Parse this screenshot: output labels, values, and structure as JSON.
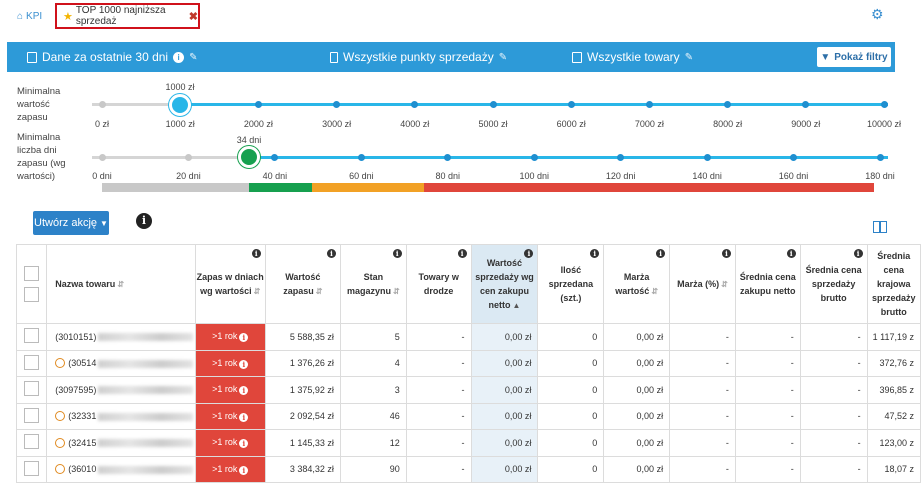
{
  "topbar": {
    "breadcrumb": "KPI",
    "active_tab": "TOP 1000 najniższa sprzedaż"
  },
  "filterbar": {
    "period": "Dane za ostatnie 30 dni",
    "points": "Wszystkie punkty sprzedaży",
    "products": "Wszystkie towary",
    "show_filters": "Pokaż filtry"
  },
  "slider_stock_value": {
    "label": "Minimalna wartość zapasu",
    "value": "1000 zł",
    "ticks": [
      "0 zł",
      "1000 zł",
      "2000 zł",
      "3000 zł",
      "4000 zł",
      "5000 zł",
      "6000 zł",
      "7000 zł",
      "8000 zł",
      "9000 zł",
      "10000 zł"
    ]
  },
  "slider_stock_days": {
    "label": "Minimalna liczba dni zapasu (wg wartości)",
    "value": "34 dni",
    "ticks": [
      "0 dni",
      "20 dni",
      "40 dni",
      "60 dni",
      "80 dni",
      "100 dni",
      "120 dni",
      "140 dni",
      "160 dni",
      "180 dni"
    ]
  },
  "colors": {
    "accent": "#2d9ad8",
    "handle_blue": "#29b6e8",
    "handle_green": "#16a04f",
    "red": "#e0463b",
    "orange": "#f2a125",
    "gray": "#c8c8c8"
  },
  "actions": {
    "create_action": "Utwórz akcję"
  },
  "table": {
    "columns": [
      "Nazwa towaru",
      "Zapas w dniach wg wartości",
      "Wartość zapasu",
      "Stan magazynu",
      "Towary w drodze",
      "Wartość sprzedaży wg cen zakupu netto",
      "Ilość sprzedana (szt.)",
      "Marża wartość",
      "Marża (%)",
      "Średnia cena zakupu netto",
      "Średnia cena sprzedaży brutto",
      "Średnia cena krajowa sprzedaży brutto"
    ],
    "rows": [
      {
        "code": "(3010151)",
        "clock": false,
        "zapas": ">1 rok",
        "wartosc": "5 588,35 zł",
        "stan": "5",
        "droga": "-",
        "sprzedaz": "0,00 zł",
        "ilosc": "0",
        "marza": "0,00 zł",
        "marza_pct": "-",
        "sr_zakup": "-",
        "sr_sprzedaz": "-",
        "sr_krajowa": "1 117,19 z"
      },
      {
        "code": "(30514",
        "clock": true,
        "zapas": ">1 rok",
        "wartosc": "1 376,26 zł",
        "stan": "4",
        "droga": "-",
        "sprzedaz": "0,00 zł",
        "ilosc": "0",
        "marza": "0,00 zł",
        "marza_pct": "-",
        "sr_zakup": "-",
        "sr_sprzedaz": "-",
        "sr_krajowa": "372,76 z"
      },
      {
        "code": "(3097595)",
        "clock": false,
        "zapas": ">1 rok",
        "wartosc": "1 375,92 zł",
        "stan": "3",
        "droga": "-",
        "sprzedaz": "0,00 zł",
        "ilosc": "0",
        "marza": "0,00 zł",
        "marza_pct": "-",
        "sr_zakup": "-",
        "sr_sprzedaz": "-",
        "sr_krajowa": "396,85 z"
      },
      {
        "code": "(32331",
        "clock": true,
        "zapas": ">1 rok",
        "wartosc": "2 092,54 zł",
        "stan": "46",
        "droga": "-",
        "sprzedaz": "0,00 zł",
        "ilosc": "0",
        "marza": "0,00 zł",
        "marza_pct": "-",
        "sr_zakup": "-",
        "sr_sprzedaz": "-",
        "sr_krajowa": "47,52 z"
      },
      {
        "code": "(32415",
        "clock": true,
        "zapas": ">1 rok",
        "wartosc": "1 145,33 zł",
        "stan": "12",
        "droga": "-",
        "sprzedaz": "0,00 zł",
        "ilosc": "0",
        "marza": "0,00 zł",
        "marza_pct": "-",
        "sr_zakup": "-",
        "sr_sprzedaz": "-",
        "sr_krajowa": "123,00 z"
      },
      {
        "code": "(36010",
        "clock": true,
        "zapas": ">1 rok",
        "wartosc": "3 384,32 zł",
        "stan": "90",
        "droga": "-",
        "sprzedaz": "0,00 zł",
        "ilosc": "0",
        "marza": "0,00 zł",
        "marza_pct": "-",
        "sr_zakup": "-",
        "sr_sprzedaz": "-",
        "sr_krajowa": "18,07 z"
      }
    ]
  }
}
